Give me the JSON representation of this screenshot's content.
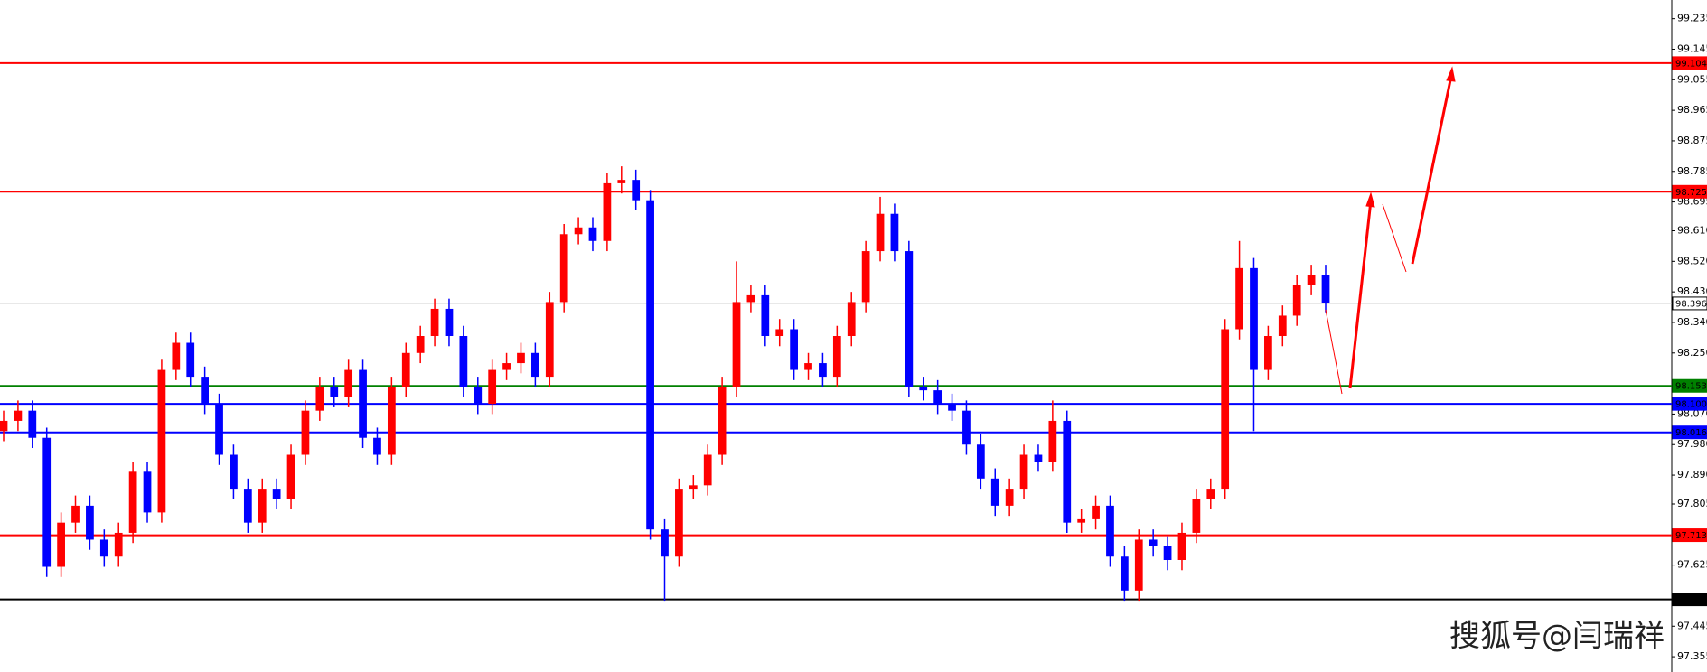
{
  "chart_data": {
    "type": "candlestick",
    "up_color": "#ff0000",
    "down_color": "#0000ff",
    "open": [
      98.02,
      98.05,
      98.08,
      98.0,
      97.62,
      97.75,
      97.8,
      97.7,
      97.65,
      97.72,
      97.9,
      97.78,
      98.2,
      98.28,
      98.18,
      98.1,
      97.95,
      97.85,
      97.75,
      97.85,
      97.82,
      97.95,
      98.08,
      98.15,
      98.12,
      98.2,
      98.0,
      97.95,
      98.15,
      98.25,
      98.3,
      98.38,
      98.3,
      98.15,
      98.1,
      98.2,
      98.22,
      98.25,
      98.18,
      98.4,
      98.6,
      98.62,
      98.58,
      98.75,
      98.76,
      98.7,
      97.73,
      97.65,
      97.85,
      97.86,
      97.95,
      98.15,
      98.4,
      98.42,
      98.3,
      98.32,
      98.2,
      98.22,
      98.18,
      98.3,
      98.4,
      98.55,
      98.66,
      98.55,
      98.15,
      98.14,
      98.1,
      98.08,
      97.98,
      97.88,
      97.8,
      97.85,
      97.95,
      97.93,
      98.05,
      97.75,
      97.76,
      97.8,
      97.65,
      97.55,
      97.7,
      97.68,
      97.64,
      97.72,
      97.82,
      97.85,
      98.32,
      98.5,
      98.2,
      98.3,
      98.36,
      98.45,
      98.48
    ],
    "high": [
      98.08,
      98.11,
      98.11,
      98.03,
      97.78,
      97.83,
      97.83,
      97.73,
      97.75,
      97.93,
      97.93,
      98.23,
      98.31,
      98.31,
      98.21,
      98.13,
      97.98,
      97.88,
      97.88,
      97.88,
      97.98,
      98.11,
      98.18,
      98.18,
      98.23,
      98.23,
      98.03,
      98.18,
      98.28,
      98.33,
      98.41,
      98.41,
      98.33,
      98.18,
      98.23,
      98.25,
      98.28,
      98.28,
      98.43,
      98.63,
      98.65,
      98.65,
      98.78,
      98.8,
      98.79,
      98.73,
      97.76,
      97.88,
      97.89,
      97.98,
      98.18,
      98.52,
      98.45,
      98.45,
      98.35,
      98.35,
      98.25,
      98.25,
      98.33,
      98.43,
      98.58,
      98.71,
      98.69,
      98.58,
      98.18,
      98.17,
      98.13,
      98.11,
      98.01,
      97.91,
      97.88,
      97.98,
      97.98,
      98.11,
      98.08,
      97.79,
      97.83,
      97.83,
      97.68,
      97.73,
      97.73,
      97.71,
      97.75,
      97.85,
      97.88,
      98.35,
      98.58,
      98.53,
      98.33,
      98.39,
      98.48,
      98.51,
      98.51
    ],
    "low": [
      97.99,
      98.02,
      97.97,
      97.59,
      97.59,
      97.72,
      97.67,
      97.62,
      97.62,
      97.69,
      97.75,
      97.75,
      98.17,
      98.15,
      98.07,
      97.92,
      97.82,
      97.72,
      97.72,
      97.79,
      97.79,
      97.92,
      98.05,
      98.09,
      98.09,
      97.97,
      97.92,
      97.92,
      98.12,
      98.22,
      98.27,
      98.27,
      98.12,
      98.07,
      98.07,
      98.17,
      98.19,
      98.15,
      98.15,
      98.37,
      98.57,
      98.55,
      98.55,
      98.72,
      98.67,
      97.7,
      97.52,
      97.62,
      97.82,
      97.83,
      97.92,
      98.12,
      98.37,
      98.27,
      98.27,
      98.17,
      98.17,
      98.15,
      98.15,
      98.27,
      98.37,
      98.52,
      98.52,
      98.12,
      98.11,
      98.07,
      98.05,
      97.95,
      97.85,
      97.77,
      97.77,
      97.82,
      97.9,
      97.9,
      97.72,
      97.72,
      97.73,
      97.62,
      97.52,
      97.52,
      97.65,
      97.61,
      97.61,
      97.69,
      97.79,
      97.82,
      98.29,
      98.02,
      98.17,
      98.27,
      98.33,
      98.42,
      98.37
    ],
    "close": [
      98.05,
      98.08,
      98.0,
      97.62,
      97.75,
      97.8,
      97.7,
      97.65,
      97.72,
      97.9,
      97.78,
      98.2,
      98.28,
      98.18,
      98.1,
      97.95,
      97.85,
      97.75,
      97.85,
      97.82,
      97.95,
      98.08,
      98.15,
      98.12,
      98.2,
      98.0,
      97.95,
      98.15,
      98.25,
      98.3,
      98.38,
      98.3,
      98.15,
      98.1,
      98.2,
      98.22,
      98.25,
      98.18,
      98.4,
      98.6,
      98.62,
      98.58,
      98.75,
      98.76,
      98.7,
      97.73,
      97.65,
      97.85,
      97.86,
      97.95,
      98.15,
      98.4,
      98.42,
      98.3,
      98.32,
      98.2,
      98.22,
      98.18,
      98.3,
      98.4,
      98.55,
      98.66,
      98.55,
      98.15,
      98.14,
      98.1,
      98.08,
      97.98,
      97.88,
      97.8,
      97.85,
      97.95,
      97.93,
      98.05,
      97.75,
      97.76,
      97.8,
      97.65,
      97.55,
      97.7,
      97.68,
      97.64,
      97.72,
      97.82,
      97.85,
      98.32,
      98.5,
      98.2,
      98.3,
      98.36,
      98.45,
      98.48,
      98.396
    ],
    "ylim": [
      97.31,
      99.29
    ],
    "yticks": [
      99.235,
      99.145,
      99.055,
      98.965,
      98.875,
      98.785,
      98.695,
      {
        "value": 98.61,
        "label": "98.610"
      },
      {
        "value": 98.52,
        "label": "98.520"
      },
      {
        "value": 98.43,
        "label": "98.430"
      },
      {
        "value": 98.34,
        "label": "98.340"
      },
      {
        "value": 98.25,
        "label": "98.250"
      },
      {
        "value": 98.07,
        "label": "98.070"
      },
      {
        "value": 97.98,
        "label": "97.980"
      },
      {
        "value": 97.89,
        "label": "97.890"
      },
      97.805,
      97.625,
      97.445,
      97.355
    ],
    "levels": [
      {
        "value": 99.104,
        "label": "99.104",
        "color": "#ff0000"
      },
      {
        "value": 98.725,
        "label": "98.725",
        "color": "#ff0000"
      },
      {
        "value": 98.396,
        "label": "98.396",
        "color": "#c0c0c0"
      },
      {
        "value": 98.153,
        "label": "98.153",
        "color": "#008000"
      },
      {
        "value": 98.1,
        "label": "98.100",
        "color": "#0000ff"
      },
      {
        "value": 98.016,
        "label": "98.016",
        "color": "#0000ff"
      },
      {
        "value": 97.713,
        "label": "97.713",
        "color": "#ff0000"
      },
      {
        "value": 97.524,
        "label": "97.524",
        "color": "#000000"
      }
    ],
    "watermark": "搜狐号@闫瑞祥"
  }
}
